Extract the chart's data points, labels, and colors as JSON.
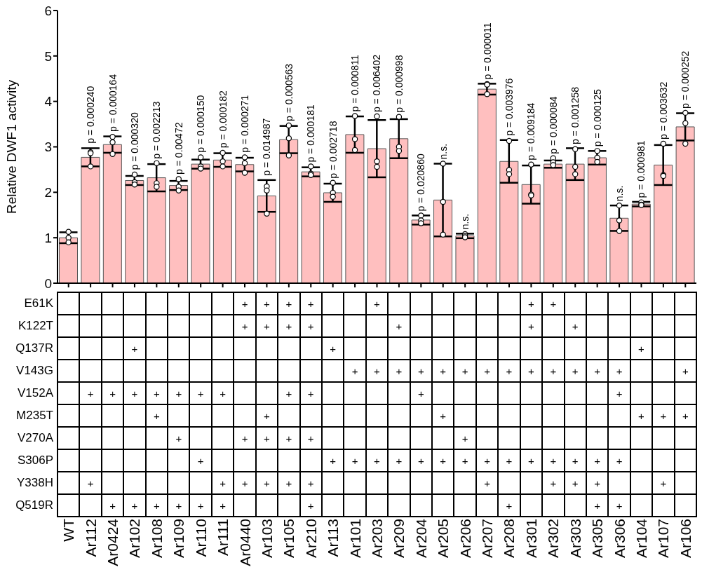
{
  "chart_data": [
    {
      "type": "bar",
      "ylabel": "Relative DWF1 activity",
      "categories": [
        "WT",
        "Ar112",
        "Ar0424",
        "Ar102",
        "Ar108",
        "Ar109",
        "Ar110",
        "Ar111",
        "Ar0440",
        "Ar103",
        "Ar105",
        "Ar210",
        "Ar113",
        "Ar101",
        "Ar203",
        "Ar209",
        "Ar204",
        "Ar205",
        "Ar206",
        "Ar207",
        "Ar208",
        "Ar301",
        "Ar302",
        "Ar303",
        "Ar305",
        "Ar306",
        "Ar104",
        "Ar107",
        "Ar106"
      ],
      "series": [
        {
          "type": "bar",
          "color": "#ffbfbf",
          "values": [
            1.0,
            2.77,
            3.05,
            2.26,
            2.32,
            2.15,
            2.62,
            2.71,
            2.61,
            1.92,
            3.16,
            2.45,
            1.99,
            3.27,
            2.96,
            3.18,
            1.39,
            1.83,
            1.04,
            4.27,
            2.68,
            2.17,
            2.62,
            2.62,
            2.76,
            1.43,
            1.74,
            2.6,
            3.44
          ],
          "errors": [
            0.12,
            0.2,
            0.18,
            0.1,
            0.3,
            0.1,
            0.1,
            0.15,
            0.15,
            0.35,
            0.3,
            0.1,
            0.2,
            0.4,
            0.63,
            0.43,
            0.1,
            0.8,
            0.05,
            0.12,
            0.47,
            0.42,
            0.08,
            0.35,
            0.15,
            0.28,
            0.05,
            0.44,
            0.3
          ]
        },
        {
          "type": "scatter",
          "color": "#ffffff",
          "x": [
            "WT",
            "WT",
            "WT",
            "Ar112",
            "Ar112",
            "Ar112",
            "Ar0424",
            "Ar0424",
            "Ar0424",
            "Ar102",
            "Ar102",
            "Ar102",
            "Ar108",
            "Ar108",
            "Ar108",
            "Ar109",
            "Ar109",
            "Ar109",
            "Ar110",
            "Ar110",
            "Ar110",
            "Ar111",
            "Ar111",
            "Ar111",
            "Ar0440",
            "Ar0440",
            "Ar0440",
            "Ar103",
            "Ar103",
            "Ar103",
            "Ar105",
            "Ar105",
            "Ar105",
            "Ar210",
            "Ar210",
            "Ar210",
            "Ar113",
            "Ar113",
            "Ar113",
            "Ar101",
            "Ar101",
            "Ar101",
            "Ar203",
            "Ar203",
            "Ar203",
            "Ar209",
            "Ar209",
            "Ar209",
            "Ar204",
            "Ar204",
            "Ar204",
            "Ar205",
            "Ar205",
            "Ar205",
            "Ar206",
            "Ar206",
            "Ar206",
            "Ar207",
            "Ar207",
            "Ar207",
            "Ar208",
            "Ar208",
            "Ar208",
            "Ar301",
            "Ar301",
            "Ar301",
            "Ar302",
            "Ar302",
            "Ar302",
            "Ar303",
            "Ar303",
            "Ar303",
            "Ar305",
            "Ar305",
            "Ar305",
            "Ar306",
            "Ar306",
            "Ar306",
            "Ar104",
            "Ar104",
            "Ar104",
            "Ar107",
            "Ar107",
            "Ar107",
            "Ar106",
            "Ar106",
            "Ar106"
          ],
          "values": [
            1.13,
            1.0,
            0.9,
            2.88,
            2.57,
            2.86,
            3.22,
            3.1,
            2.84,
            2.39,
            2.22,
            2.17,
            2.64,
            2.2,
            2.12,
            2.29,
            2.12,
            2.04,
            2.77,
            2.57,
            2.52,
            2.87,
            2.68,
            2.57,
            2.77,
            2.64,
            2.43,
            2.13,
            2.04,
            1.53,
            3.47,
            3.19,
            2.81,
            2.57,
            2.41,
            2.38,
            2.21,
            1.99,
            1.9,
            3.68,
            3.17,
            2.93,
            3.67,
            2.68,
            2.56,
            3.66,
            3.0,
            2.91,
            1.49,
            1.38,
            1.32,
            2.63,
            1.79,
            1.07,
            1.08,
            1.04,
            1.01,
            4.38,
            4.37,
            4.16,
            3.13,
            2.49,
            2.4,
            2.61,
            1.95,
            1.93,
            2.75,
            2.66,
            2.6,
            2.95,
            2.56,
            2.4,
            2.91,
            2.76,
            2.67,
            1.71,
            1.38,
            1.15,
            1.78,
            1.73,
            1.72,
            3.07,
            2.38,
            2.36,
            3.75,
            3.52,
            3.07
          ]
        }
      ],
      "marker": "circle",
      "ylim": [
        0,
        6
      ],
      "yticks": [
        0,
        1,
        2,
        3,
        4,
        5,
        6
      ],
      "tick_labels": "y",
      "annotations": [
        {
          "text": "p = 0.000240",
          "x": "Ar112",
          "y": 2.98
        },
        {
          "text": "p = 0.000164",
          "x": "Ar0424",
          "y": 3.24
        },
        {
          "text": "p = 0.000320",
          "x": "Ar102",
          "y": 2.4
        },
        {
          "text": "p = 0.002213",
          "x": "Ar108",
          "y": 2.64
        },
        {
          "text": "p = 0.00472",
          "x": "Ar109",
          "y": 2.3
        },
        {
          "text": "p = 0.000150",
          "x": "Ar110",
          "y": 2.78
        },
        {
          "text": "p = 0.000182",
          "x": "Ar111",
          "y": 2.88
        },
        {
          "text": "p = 0.000271",
          "x": "Ar0440",
          "y": 2.78
        },
        {
          "text": "p = 0.014987",
          "x": "Ar103",
          "y": 2.27
        },
        {
          "text": "p = 0.000563",
          "x": "Ar105",
          "y": 3.47
        },
        {
          "text": "p = 0.000181",
          "x": "Ar210",
          "y": 2.57
        },
        {
          "text": "p = 0.002718",
          "x": "Ar113",
          "y": 2.21
        },
        {
          "text": "p = 0.000811",
          "x": "Ar101",
          "y": 3.68
        },
        {
          "text": "p = 0.006402",
          "x": "Ar203",
          "y": 3.67
        },
        {
          "text": "p = 0.000998",
          "x": "Ar209",
          "y": 3.66
        },
        {
          "text": "p = 0.020860",
          "x": "Ar204",
          "y": 1.49
        },
        {
          "text": "n.s.",
          "x": "Ar205",
          "y": 2.63
        },
        {
          "text": "n.s.",
          "x": "Ar206",
          "y": 1.09
        },
        {
          "text": "p = 0.000011",
          "x": "Ar207",
          "y": 4.39
        },
        {
          "text": "p = 0.003976",
          "x": "Ar208",
          "y": 3.15
        },
        {
          "text": "p = 0.009184",
          "x": "Ar301",
          "y": 2.61
        },
        {
          "text": "p = 0.000084",
          "x": "Ar302",
          "y": 2.75
        },
        {
          "text": "p = 0.001258",
          "x": "Ar303",
          "y": 2.96
        },
        {
          "text": "p = 0.000125",
          "x": "Ar305",
          "y": 2.91
        },
        {
          "text": "n.s.",
          "x": "Ar306",
          "y": 1.71
        },
        {
          "text": "p = 0.000981",
          "x": "Ar104",
          "y": 1.78
        },
        {
          "text": "p = 0.003632",
          "x": "Ar107",
          "y": 3.07
        },
        {
          "text": "p = 0.000252",
          "x": "Ar106",
          "y": 3.75
        }
      ]
    },
    {
      "type": "heatmap",
      "categories": [
        "WT",
        "Ar112",
        "Ar0424",
        "Ar102",
        "Ar108",
        "Ar109",
        "Ar110",
        "Ar111",
        "Ar0440",
        "Ar103",
        "Ar105",
        "Ar210",
        "Ar113",
        "Ar101",
        "Ar203",
        "Ar209",
        "Ar204",
        "Ar205",
        "Ar206",
        "Ar207",
        "Ar208",
        "Ar301",
        "Ar302",
        "Ar303",
        "Ar305",
        "Ar306",
        "Ar104",
        "Ar107",
        "Ar106"
      ],
      "y_categories": [
        "E61K",
        "K122T",
        "Q137R",
        "V143G",
        "V152A",
        "M235T",
        "V270A",
        "S306P",
        "Y338H",
        "Q519R"
      ],
      "cells": [
        [
          null,
          null,
          null,
          null,
          null,
          null,
          null,
          null,
          null,
          null,
          null,
          null,
          null,
          null,
          null,
          null,
          null,
          null,
          null,
          null,
          null,
          null,
          null,
          null,
          null,
          null,
          null,
          null,
          null
        ],
        [
          null,
          null,
          null,
          null,
          null,
          null,
          null,
          null,
          null,
          null,
          null,
          null,
          null,
          null,
          null,
          null,
          null,
          null,
          null,
          null,
          null,
          null,
          null,
          null,
          null,
          null,
          null,
          null,
          null
        ],
        [
          null,
          null,
          null,
          null,
          null,
          null,
          null,
          null,
          null,
          null,
          null,
          null,
          null,
          null,
          null,
          null,
          null,
          null,
          null,
          null,
          null,
          null,
          null,
          null,
          null,
          null,
          null,
          null,
          null
        ],
        [
          null,
          null,
          null,
          null,
          null,
          null,
          null,
          null,
          null,
          null,
          null,
          null,
          null,
          null,
          null,
          null,
          null,
          null,
          null,
          null,
          null,
          null,
          null,
          null,
          null,
          null,
          null,
          null,
          null
        ],
        [
          null,
          null,
          null,
          null,
          null,
          null,
          null,
          null,
          null,
          null,
          null,
          null,
          null,
          null,
          null,
          null,
          null,
          null,
          null,
          null,
          null,
          null,
          null,
          null,
          null,
          null,
          null,
          null,
          null
        ],
        [
          null,
          null,
          null,
          null,
          null,
          null,
          null,
          null,
          null,
          null,
          null,
          null,
          null,
          null,
          null,
          null,
          null,
          null,
          null,
          null,
          null,
          null,
          null,
          null,
          null,
          null,
          null,
          null,
          null
        ],
        [
          null,
          null,
          null,
          null,
          null,
          null,
          null,
          null,
          null,
          null,
          null,
          null,
          null,
          null,
          null,
          null,
          null,
          null,
          null,
          null,
          null,
          null,
          null,
          null,
          null,
          null,
          null,
          null,
          null
        ],
        [
          null,
          null,
          null,
          null,
          null,
          null,
          null,
          null,
          null,
          null,
          null,
          null,
          null,
          null,
          null,
          null,
          null,
          null,
          null,
          null,
          null,
          null,
          null,
          null,
          null,
          null,
          null,
          null,
          null
        ],
        [
          null,
          null,
          null,
          null,
          null,
          null,
          null,
          null,
          null,
          null,
          null,
          null,
          null,
          null,
          null,
          null,
          null,
          null,
          null,
          null,
          null,
          null,
          null,
          null,
          null,
          null,
          null,
          null,
          null
        ],
        [
          null,
          null,
          null,
          null,
          null,
          null,
          null,
          null,
          null,
          null,
          null,
          null,
          null,
          null,
          null,
          null,
          null,
          null,
          null,
          null,
          null,
          null,
          null,
          null,
          null,
          null,
          null,
          null,
          null
        ]
      ],
      "cell_labels": [
        [
          null,
          null,
          null,
          null,
          null,
          null,
          null,
          null,
          "+",
          "+",
          "+",
          "+",
          null,
          null,
          "+",
          null,
          null,
          null,
          null,
          null,
          null,
          "+",
          "+",
          null,
          null,
          null,
          null,
          null,
          null
        ],
        [
          null,
          null,
          null,
          null,
          null,
          null,
          null,
          null,
          "+",
          "+",
          "+",
          "+",
          null,
          null,
          null,
          "+",
          null,
          null,
          null,
          null,
          null,
          "+",
          null,
          "+",
          null,
          null,
          null,
          null,
          null
        ],
        [
          null,
          null,
          null,
          "+",
          null,
          null,
          null,
          null,
          null,
          null,
          null,
          null,
          "+",
          null,
          null,
          null,
          null,
          null,
          null,
          null,
          null,
          null,
          null,
          null,
          null,
          null,
          "+",
          null,
          null
        ],
        [
          null,
          null,
          null,
          null,
          null,
          null,
          null,
          null,
          null,
          null,
          null,
          null,
          null,
          "+",
          "+",
          "+",
          "+",
          "+",
          "+",
          "+",
          "+",
          "+",
          "+",
          "+",
          "+",
          "+",
          null,
          null,
          "+"
        ],
        [
          null,
          "+",
          "+",
          "+",
          "+",
          "+",
          "+",
          "+",
          null,
          null,
          "+",
          "+",
          null,
          null,
          null,
          null,
          "+",
          null,
          null,
          null,
          null,
          null,
          null,
          null,
          null,
          "+",
          null,
          null,
          null
        ],
        [
          null,
          null,
          null,
          null,
          "+",
          null,
          null,
          null,
          null,
          "+",
          null,
          null,
          null,
          null,
          null,
          null,
          null,
          "+",
          null,
          null,
          null,
          null,
          null,
          null,
          null,
          null,
          "+",
          "+",
          "+"
        ],
        [
          null,
          null,
          null,
          null,
          null,
          "+",
          null,
          null,
          "+",
          "+",
          "+",
          "+",
          null,
          null,
          null,
          null,
          null,
          null,
          "+",
          null,
          null,
          null,
          null,
          null,
          null,
          null,
          null,
          null,
          null
        ],
        [
          null,
          null,
          null,
          null,
          null,
          null,
          "+",
          null,
          null,
          null,
          null,
          null,
          "+",
          "+",
          "+",
          "+",
          "+",
          "+",
          "+",
          "+",
          "+",
          "+",
          "+",
          "+",
          "+",
          "+",
          null,
          null,
          null
        ],
        [
          null,
          "+",
          null,
          null,
          null,
          null,
          null,
          "+",
          "+",
          "+",
          "+",
          "+",
          null,
          null,
          null,
          null,
          null,
          null,
          null,
          "+",
          null,
          null,
          "+",
          "+",
          "+",
          null,
          null,
          "+",
          null
        ],
        [
          null,
          null,
          "+",
          "+",
          "+",
          "+",
          "+",
          "+",
          null,
          null,
          null,
          "+",
          null,
          null,
          null,
          null,
          null,
          null,
          null,
          null,
          "+",
          null,
          null,
          null,
          "+",
          "+",
          null,
          null,
          null
        ]
      ]
    }
  ]
}
